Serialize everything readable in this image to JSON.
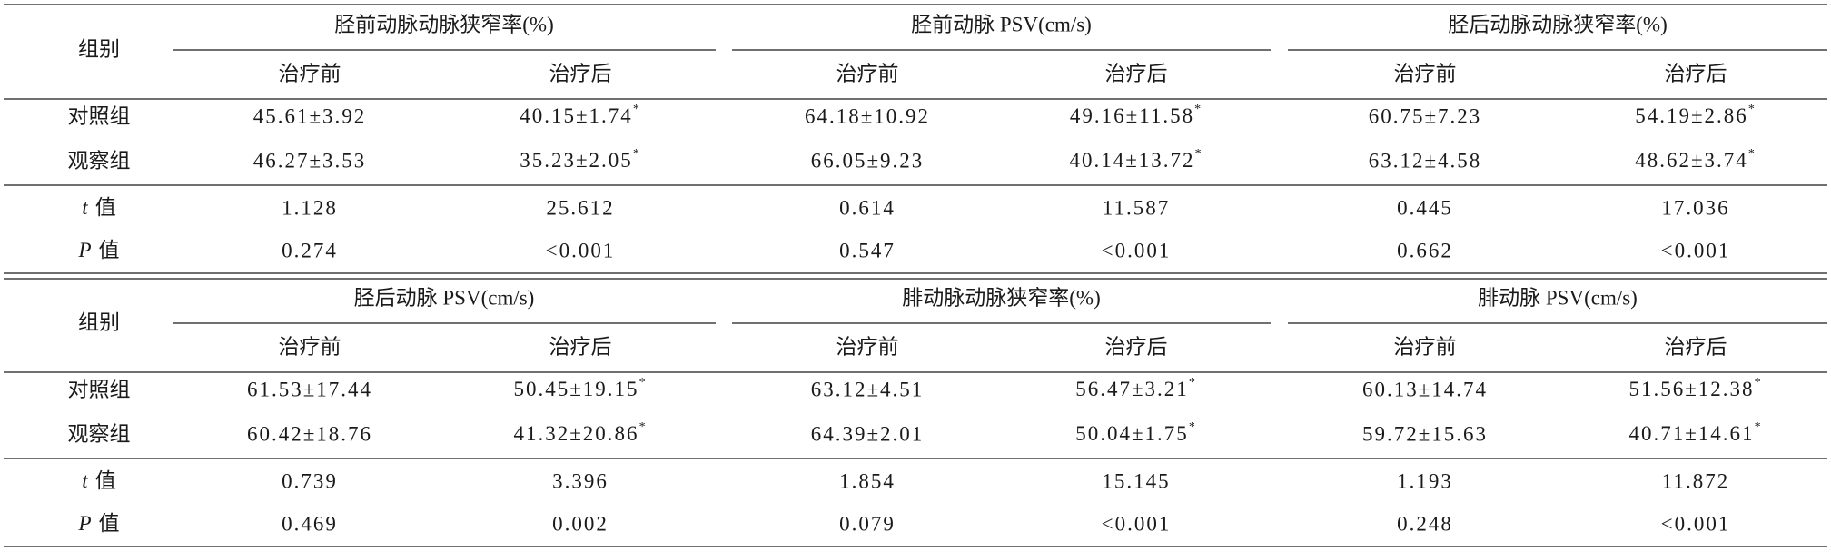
{
  "blocks": [
    {
      "group_label": "组别",
      "groups": [
        {
          "title": "胫前动脉动脉狭窄率(%)",
          "sub": [
            "治疗前",
            "治疗后"
          ]
        },
        {
          "title": "胫前动脉 PSV(cm/s)",
          "sub": [
            "治疗前",
            "治疗后"
          ]
        },
        {
          "title": "胫后动脉动脉狭窄率(%)",
          "sub": [
            "治疗前",
            "治疗后"
          ]
        }
      ],
      "rows": [
        {
          "label": "对照组",
          "cells": [
            "45.61±3.92",
            {
              "text": "40.15±1.74",
              "mark": "*"
            },
            "64.18±10.92",
            {
              "text": "49.16±11.58",
              "mark": "*"
            },
            "60.75±7.23",
            {
              "text": "54.19±2.86",
              "mark": "*"
            }
          ]
        },
        {
          "label": "观察组",
          "cells": [
            "46.27±3.53",
            {
              "text": "35.23±2.05",
              "mark": "*"
            },
            "66.05±9.23",
            {
              "text": "40.14±13.72",
              "mark": "*"
            },
            "63.12±4.58",
            {
              "text": "48.62±3.74",
              "mark": "*"
            }
          ]
        },
        {
          "label": {
            "symbol": "t",
            "text": "值"
          },
          "cells": [
            "1.128",
            "25.612",
            "0.614",
            "11.587",
            "0.445",
            "17.036"
          ]
        },
        {
          "label": {
            "symbol": "P",
            "text": "值"
          },
          "cells": [
            "0.274",
            "<0.001",
            "0.547",
            "<0.001",
            "0.662",
            "<0.001"
          ]
        }
      ]
    },
    {
      "group_label": "组别",
      "groups": [
        {
          "title": "胫后动脉 PSV(cm/s)",
          "sub": [
            "治疗前",
            "治疗后"
          ]
        },
        {
          "title": "腓动脉动脉狭窄率(%)",
          "sub": [
            "治疗前",
            "治疗后"
          ]
        },
        {
          "title": "腓动脉 PSV(cm/s)",
          "sub": [
            "治疗前",
            "治疗后"
          ]
        }
      ],
      "rows": [
        {
          "label": "对照组",
          "cells": [
            "61.53±17.44",
            {
              "text": "50.45±19.15",
              "mark": "*"
            },
            "63.12±4.51",
            {
              "text": "56.47±3.21",
              "mark": "*"
            },
            "60.13±14.74",
            {
              "text": "51.56±12.38",
              "mark": "*"
            }
          ]
        },
        {
          "label": "观察组",
          "cells": [
            "60.42±18.76",
            {
              "text": "41.32±20.86",
              "mark": "*"
            },
            "64.39±2.01",
            {
              "text": "50.04±1.75",
              "mark": "*"
            },
            "59.72±15.63",
            {
              "text": "40.71±14.61",
              "mark": "*"
            }
          ]
        },
        {
          "label": {
            "symbol": "t",
            "text": "值"
          },
          "cells": [
            "0.739",
            "3.396",
            "1.854",
            "15.145",
            "1.193",
            "11.872"
          ]
        },
        {
          "label": {
            "symbol": "P",
            "text": "值"
          },
          "cells": [
            "0.469",
            "0.002",
            "0.079",
            "<0.001",
            "0.248",
            "<0.001"
          ]
        }
      ]
    }
  ]
}
